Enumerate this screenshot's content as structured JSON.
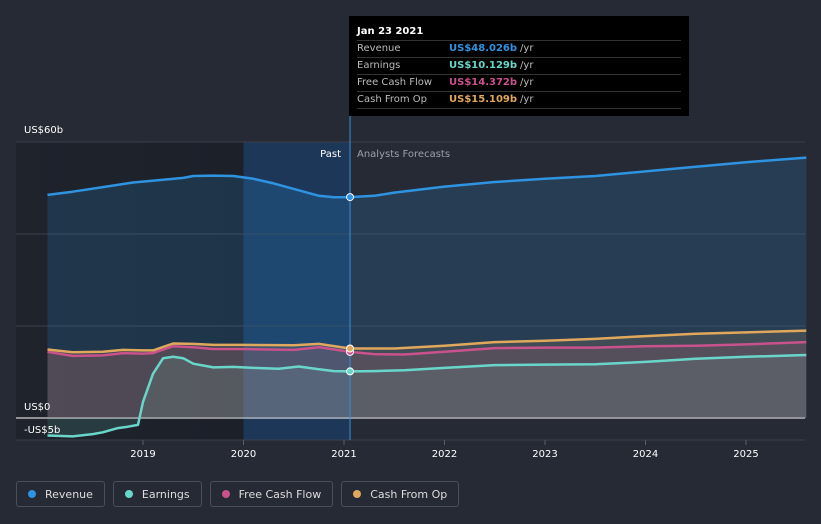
{
  "chart_data": {
    "type": "area",
    "y_tick_labels": [
      "US$60b",
      "US$0",
      "-US$5b"
    ],
    "ylim": [
      -5,
      60
    ],
    "xlim": [
      2018.0,
      2025.6
    ],
    "x_ticks": [
      2019,
      2020,
      2021,
      2022,
      2023,
      2024,
      2025
    ],
    "x_tick_labels": [
      "2019",
      "2020",
      "2021",
      "2022",
      "2023",
      "2024",
      "2025"
    ],
    "past_label": "Past",
    "forecast_label": "Analysts Forecasts",
    "cursor_x": 2021.06,
    "series": [
      {
        "name": "Revenue",
        "color": "#2e93e0",
        "points": [
          [
            2018.05,
            48.5
          ],
          [
            2018.3,
            49.2
          ],
          [
            2018.6,
            50.2
          ],
          [
            2018.9,
            51.2
          ],
          [
            2019.2,
            51.8
          ],
          [
            2019.4,
            52.2
          ],
          [
            2019.5,
            52.6
          ],
          [
            2019.7,
            52.7
          ],
          [
            2019.9,
            52.6
          ],
          [
            2020.1,
            52.0
          ],
          [
            2020.3,
            51.0
          ],
          [
            2020.5,
            49.8
          ],
          [
            2020.75,
            48.3
          ],
          [
            2020.9,
            48.0
          ],
          [
            2021.06,
            48.026
          ],
          [
            2021.3,
            48.3
          ],
          [
            2021.5,
            49.0
          ],
          [
            2022.0,
            50.3
          ],
          [
            2022.5,
            51.3
          ],
          [
            2023.0,
            52.0
          ],
          [
            2023.5,
            52.6
          ],
          [
            2024.0,
            53.6
          ],
          [
            2024.5,
            54.6
          ],
          [
            2025.0,
            55.6
          ],
          [
            2025.6,
            56.6
          ]
        ]
      },
      {
        "name": "Earnings",
        "color": "#6ad6c9",
        "points": [
          [
            2018.05,
            -3.8
          ],
          [
            2018.3,
            -4.0
          ],
          [
            2018.5,
            -3.5
          ],
          [
            2018.6,
            -3.1
          ],
          [
            2018.75,
            -2.2
          ],
          [
            2018.85,
            -1.9
          ],
          [
            2018.95,
            -1.5
          ],
          [
            2019.0,
            3.5
          ],
          [
            2019.1,
            9.6
          ],
          [
            2019.2,
            13.0
          ],
          [
            2019.3,
            13.3
          ],
          [
            2019.4,
            13.0
          ],
          [
            2019.5,
            11.8
          ],
          [
            2019.7,
            11.0
          ],
          [
            2019.9,
            11.1
          ],
          [
            2020.1,
            10.9
          ],
          [
            2020.35,
            10.7
          ],
          [
            2020.55,
            11.2
          ],
          [
            2020.75,
            10.6
          ],
          [
            2020.9,
            10.2
          ],
          [
            2021.06,
            10.129
          ],
          [
            2021.3,
            10.2
          ],
          [
            2021.6,
            10.4
          ],
          [
            2022.0,
            10.9
          ],
          [
            2022.5,
            11.5
          ],
          [
            2023.0,
            11.6
          ],
          [
            2023.5,
            11.7
          ],
          [
            2024.0,
            12.2
          ],
          [
            2024.5,
            12.9
          ],
          [
            2025.0,
            13.3
          ],
          [
            2025.6,
            13.7
          ]
        ]
      },
      {
        "name": "Free Cash Flow",
        "color": "#c9528d",
        "points": [
          [
            2018.05,
            14.4
          ],
          [
            2018.3,
            13.5
          ],
          [
            2018.6,
            13.6
          ],
          [
            2018.8,
            14.1
          ],
          [
            2019.0,
            14.0
          ],
          [
            2019.1,
            14.1
          ],
          [
            2019.3,
            15.6
          ],
          [
            2019.5,
            15.4
          ],
          [
            2019.7,
            15.0
          ],
          [
            2020.0,
            15.0
          ],
          [
            2020.5,
            14.8
          ],
          [
            2020.75,
            15.4
          ],
          [
            2021.06,
            14.372
          ],
          [
            2021.3,
            13.9
          ],
          [
            2021.6,
            13.8
          ],
          [
            2022.0,
            14.4
          ],
          [
            2022.5,
            15.2
          ],
          [
            2023.0,
            15.3
          ],
          [
            2023.5,
            15.3
          ],
          [
            2024.0,
            15.6
          ],
          [
            2024.5,
            15.7
          ],
          [
            2025.0,
            16.0
          ],
          [
            2025.6,
            16.5
          ]
        ]
      },
      {
        "name": "Cash From Op",
        "color": "#e0a85c",
        "points": [
          [
            2018.05,
            14.9
          ],
          [
            2018.3,
            14.3
          ],
          [
            2018.6,
            14.4
          ],
          [
            2018.8,
            14.8
          ],
          [
            2019.0,
            14.7
          ],
          [
            2019.1,
            14.7
          ],
          [
            2019.3,
            16.2
          ],
          [
            2019.5,
            16.1
          ],
          [
            2019.7,
            15.9
          ],
          [
            2020.0,
            15.9
          ],
          [
            2020.5,
            15.8
          ],
          [
            2020.75,
            16.1
          ],
          [
            2021.06,
            15.109
          ],
          [
            2021.5,
            15.1
          ],
          [
            2022.0,
            15.7
          ],
          [
            2022.5,
            16.5
          ],
          [
            2023.0,
            16.8
          ],
          [
            2023.5,
            17.2
          ],
          [
            2024.0,
            17.8
          ],
          [
            2024.5,
            18.3
          ],
          [
            2025.0,
            18.6
          ],
          [
            2025.6,
            19.0
          ]
        ]
      }
    ]
  },
  "tooltip": {
    "date": "Jan 23 2021",
    "rows": [
      {
        "label": "Revenue",
        "value": "US$48.026b",
        "unit": "/yr",
        "color": "#2e93e0"
      },
      {
        "label": "Earnings",
        "value": "US$10.129b",
        "unit": "/yr",
        "color": "#6ad6c9"
      },
      {
        "label": "Free Cash Flow",
        "value": "US$14.372b",
        "unit": "/yr",
        "color": "#c9528d"
      },
      {
        "label": "Cash From Op",
        "value": "US$15.109b",
        "unit": "/yr",
        "color": "#e0a85c"
      }
    ]
  },
  "legend": [
    {
      "label": "Revenue",
      "color": "#2e93e0"
    },
    {
      "label": "Earnings",
      "color": "#6ad6c9"
    },
    {
      "label": "Free Cash Flow",
      "color": "#c9528d"
    },
    {
      "label": "Cash From Op",
      "color": "#e0a85c"
    }
  ]
}
